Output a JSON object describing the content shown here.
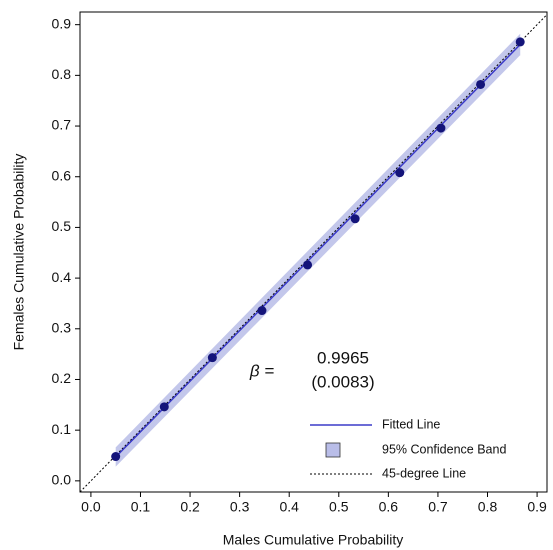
{
  "chart_data": {
    "type": "scatter",
    "x_label": "Males Cumulative Probability",
    "y_label": "Females Cumulative Probability",
    "xlim": [
      -0.022,
      0.92
    ],
    "ylim": [
      -0.022,
      0.925
    ],
    "xticks": [
      {
        "value": 0,
        "label": "0.0"
      },
      0.1,
      0.2,
      0.3,
      0.4,
      0.5,
      0.6,
      0.7,
      0.8,
      0.9
    ],
    "yticks": [
      {
        "value": 0,
        "label": "0.0"
      },
      0.1,
      0.2,
      0.3,
      0.4,
      0.5,
      0.6,
      0.7,
      0.8,
      0.9
    ],
    "points": {
      "color": "#14147a",
      "x": [
        0.05,
        0.148,
        0.245,
        0.345,
        0.437,
        0.533,
        0.623,
        0.706,
        0.786,
        0.866
      ],
      "values": [
        0.048,
        0.146,
        0.243,
        0.336,
        0.426,
        0.517,
        0.608,
        0.696,
        0.782,
        0.866
      ]
    },
    "series": [
      {
        "name": "Fitted Line",
        "color": "#3b3bc8",
        "x": [
          0.05,
          0.866
        ],
        "values": [
          0.047,
          0.861
        ]
      },
      {
        "name": "95% Confidence Band",
        "color": "#b9bde8",
        "x": [
          0.05,
          0.866
        ],
        "lower": [
          0.028,
          0.84
        ],
        "upper": [
          0.066,
          0.882
        ]
      },
      {
        "name": "45-degree Line",
        "color": "#000000",
        "x": [
          -0.022,
          0.92
        ],
        "values": [
          -0.022,
          0.92
        ]
      }
    ],
    "legend": "lower right",
    "annotation": {
      "label": "β =",
      "value": "0.9965",
      "se": "(0.0083)"
    }
  }
}
